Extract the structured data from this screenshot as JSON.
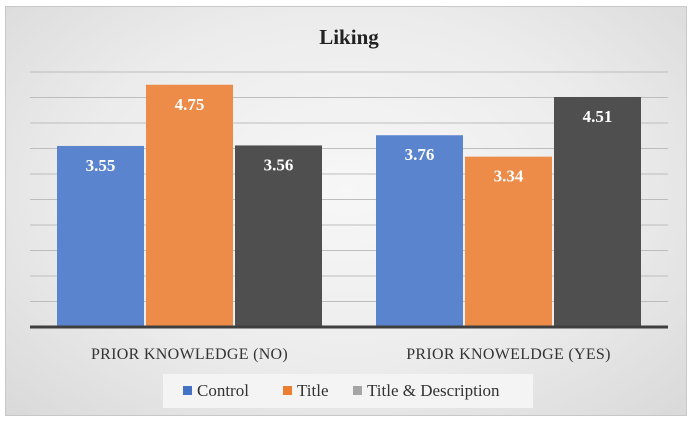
{
  "chart_data": {
    "type": "bar",
    "title": "Liking",
    "categories": [
      "PRIOR KNOWLEDGE (NO)",
      "PRIOR KNOWELDGE (YES)"
    ],
    "series": [
      {
        "name": "Control",
        "values": [
          3.55,
          3.76
        ],
        "color": "#5b84cf"
      },
      {
        "name": "Title",
        "values": [
          4.75,
          3.34
        ],
        "color": "#ed8b48"
      },
      {
        "name": "Title & Description",
        "values": [
          3.56,
          4.51
        ],
        "color": "#4f4f4f"
      }
    ],
    "legend_colors": [
      "#4472c4",
      "#ed7d31",
      "#a5a5a5"
    ],
    "ylim": [
      0,
      5
    ],
    "grid": true,
    "legend_position": "bottom",
    "data_labels": true
  }
}
